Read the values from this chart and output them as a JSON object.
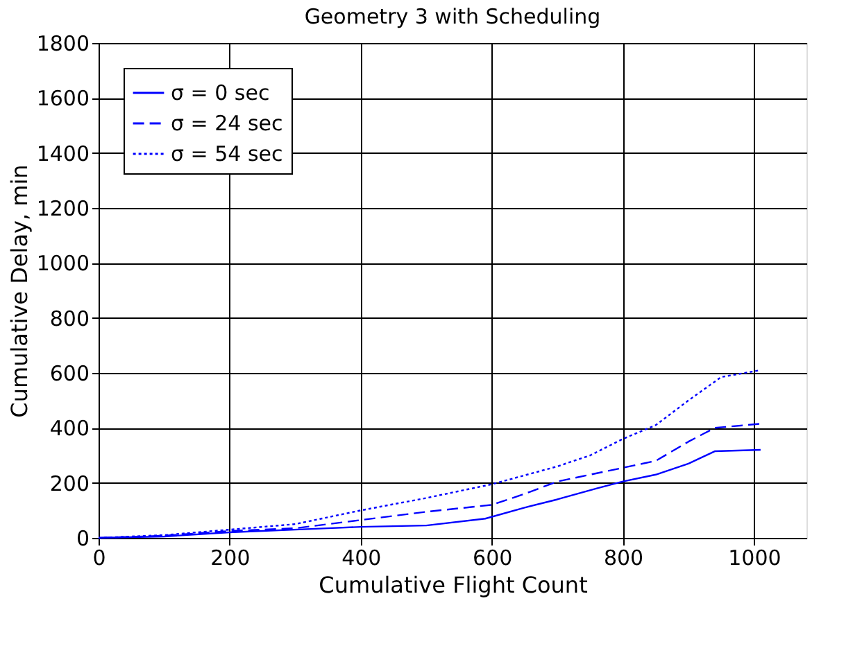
{
  "chart_data": {
    "type": "line",
    "title": "Geometry 3 with Scheduling",
    "xlabel": "Cumulative Flight Count",
    "ylabel": "Cumulative Delay, min",
    "xlim": [
      0,
      1080
    ],
    "xticks": [
      0,
      200,
      400,
      600,
      800,
      1000
    ],
    "ylim": [
      0,
      1800
    ],
    "yticks": [
      0,
      200,
      400,
      600,
      800,
      1000,
      1200,
      1400,
      1600,
      1800
    ],
    "grid": true,
    "legend": "top left",
    "marker": "none",
    "series": [
      {
        "name": "σ = 0 sec",
        "color": "#0000ff",
        "line_style": "solid",
        "x": [
          0,
          100,
          200,
          350,
          400,
          500,
          590,
          650,
          700,
          760,
          800,
          850,
          900,
          940,
          1010
        ],
        "values": [
          0,
          5,
          20,
          35,
          40,
          45,
          70,
          110,
          140,
          180,
          205,
          230,
          270,
          315,
          320
        ]
      },
      {
        "name": "σ = 24 sec",
        "color": "#0000ff",
        "line_style": "dashed",
        "x": [
          0,
          100,
          200,
          300,
          400,
          500,
          600,
          650,
          700,
          800,
          850,
          900,
          940,
          1010
        ],
        "values": [
          0,
          8,
          25,
          35,
          65,
          95,
          120,
          160,
          205,
          255,
          280,
          350,
          400,
          415
        ]
      },
      {
        "name": "σ = 54 sec",
        "color": "#0000ff",
        "line_style": "dotted",
        "x": [
          0,
          100,
          200,
          300,
          400,
          500,
          600,
          700,
          750,
          800,
          850,
          900,
          950,
          1010
        ],
        "values": [
          0,
          10,
          30,
          50,
          100,
          145,
          195,
          260,
          300,
          360,
          410,
          500,
          585,
          610
        ]
      }
    ]
  }
}
